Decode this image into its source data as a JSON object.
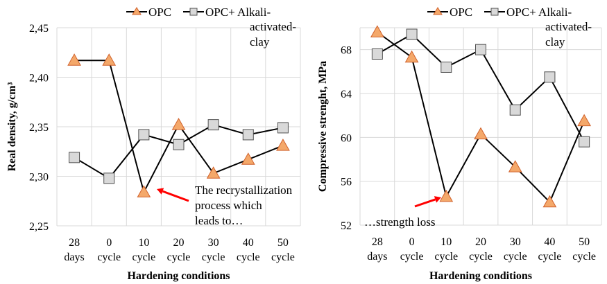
{
  "colors": {
    "opc_fill": "#F4A86A",
    "opc_stroke": "#D0602A",
    "mix_fill": "#D9D9D9",
    "mix_stroke": "#505050",
    "line": "#000000",
    "grid": "#D9D9D9",
    "arrow": "#FF0000"
  },
  "chart_data": [
    {
      "type": "line",
      "categories": [
        [
          "28",
          "days"
        ],
        [
          "0",
          "cycle"
        ],
        [
          "10",
          "cycle"
        ],
        [
          "20",
          "cycle"
        ],
        [
          "30",
          "cycle"
        ],
        [
          "40",
          "cycle"
        ],
        [
          "50",
          "cycle"
        ]
      ],
      "xlabel": "Hardening conditions",
      "ylabel": "Real density, g/cm³",
      "ylim": [
        2.25,
        2.45
      ],
      "yticks": [
        "2,25",
        "2,30",
        "2,35",
        "2,40",
        "2,45"
      ],
      "ytick_values": [
        2.25,
        2.3,
        2.35,
        2.4,
        2.45
      ],
      "grid": true,
      "legend": {
        "placement": "top",
        "opc": "OPC",
        "mix_lines": [
          "OPC+ Alkali-",
          "activated-",
          "clay"
        ]
      },
      "series": [
        {
          "name": "OPC",
          "marker": "triangle",
          "values": [
            2.417,
            2.417,
            2.284,
            2.352,
            2.303,
            2.317,
            2.331
          ]
        },
        {
          "name": "OPC+ Alkali-activated-clay",
          "marker": "square",
          "values": [
            2.319,
            2.298,
            2.342,
            2.332,
            2.352,
            2.342,
            2.349
          ]
        }
      ],
      "annotation": [
        "The  recrystallization",
        "process which",
        "leads to…"
      ]
    },
    {
      "type": "line",
      "categories": [
        [
          "28",
          "days"
        ],
        [
          "0",
          "cycle"
        ],
        [
          "10",
          "cycle"
        ],
        [
          "20",
          "cycle"
        ],
        [
          "30",
          "cycle"
        ],
        [
          "40",
          "cycle"
        ],
        [
          "50",
          "cycle"
        ]
      ],
      "xlabel": "Hardening conditions",
      "ylabel": "Compressive strenght, MPa",
      "ylim": [
        52,
        70
      ],
      "yticks": [
        "52",
        "56",
        "60",
        "64",
        "68"
      ],
      "ytick_values": [
        52,
        56,
        60,
        64,
        68
      ],
      "grid": true,
      "legend": {
        "placement": "top",
        "opc": "OPC",
        "mix_lines": [
          "OPC+ Alkali-",
          "activated-",
          "clay"
        ]
      },
      "series": [
        {
          "name": "OPC",
          "marker": "triangle",
          "values": [
            69.6,
            67.3,
            54.6,
            60.3,
            57.3,
            54.1,
            61.5
          ]
        },
        {
          "name": "OPC+ Alkali-activated-clay",
          "marker": "square",
          "values": [
            67.6,
            69.4,
            66.4,
            68.0,
            62.5,
            65.5,
            59.6
          ]
        }
      ],
      "annotation": [
        "…strength loss"
      ]
    }
  ]
}
